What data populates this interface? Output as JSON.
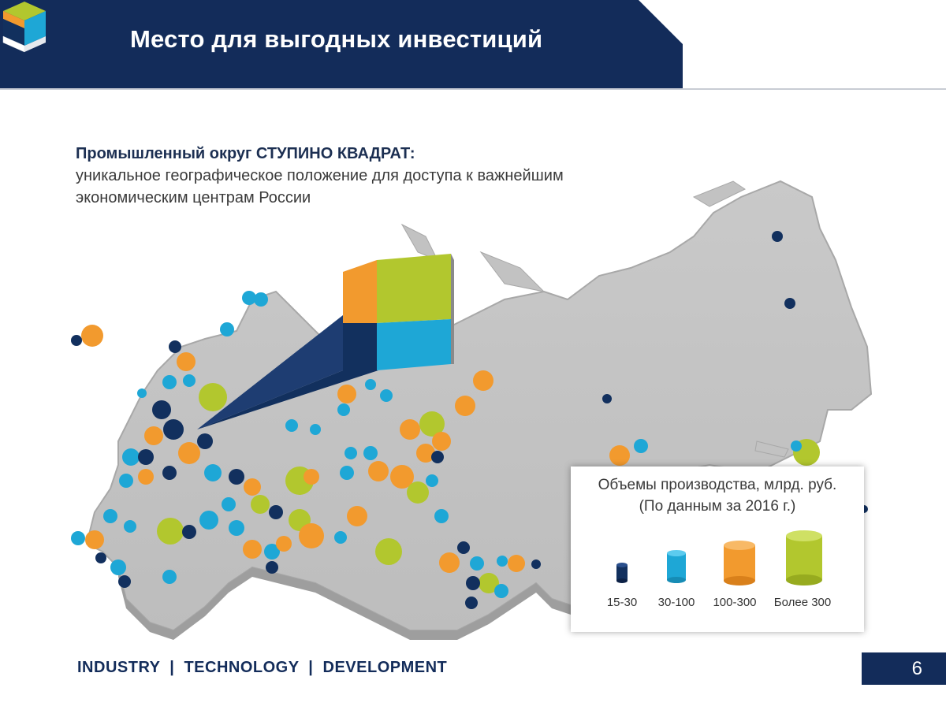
{
  "header": {
    "title": "Место для выгодных инвестиций",
    "bar_color": "#132c5a",
    "logo_icon": "cube-logo-icon"
  },
  "intro": {
    "heading": "Промышленный округ СТУПИНО КВАДРАТ:",
    "line1": "уникальное географическое положение для доступа к важнейшим",
    "line2": "экономическим центрам России"
  },
  "map": {
    "icon": "russia-map-icon",
    "callout_icon": "stupino-square-cube-icon",
    "colors": {
      "dark": "#12305e",
      "blue": "#1ea7d6",
      "orange": "#f29a2e",
      "green": "#b2c72e"
    }
  },
  "legend": {
    "title_line1": "Объемы производства, млрд. руб.",
    "title_line2": "(По данным за 2016 г.)",
    "items": [
      {
        "label": "15-30",
        "color": "#12305e"
      },
      {
        "label": "30-100",
        "color": "#1ea7d6"
      },
      {
        "label": "100-300",
        "color": "#f29a2e"
      },
      {
        "label": "Более 300",
        "color": "#b2c72e"
      }
    ]
  },
  "footer": {
    "tagline": "INDUSTRY  |  TECHNOLOGY  |  DEVELOPMENT",
    "page_number": "6"
  }
}
